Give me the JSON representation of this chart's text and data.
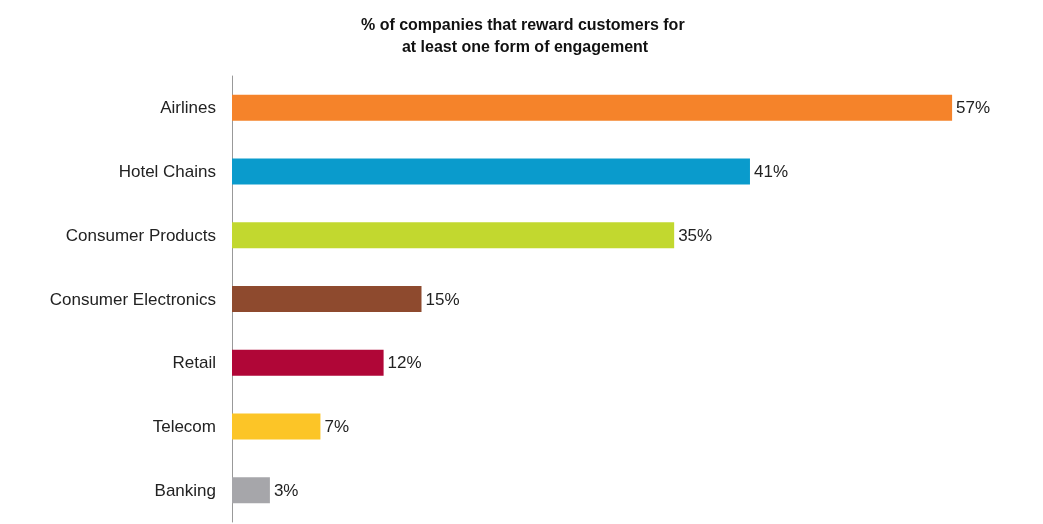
{
  "chart_data": {
    "type": "bar",
    "orientation": "horizontal",
    "title": "% of companies that reward customers for at least one form of engagement",
    "categories": [
      "Airlines",
      "Hotel Chains",
      "Consumer Products",
      "Consumer Electronics",
      "Retail",
      "Telecom",
      "Banking"
    ],
    "values": [
      57,
      41,
      35,
      15,
      12,
      7,
      3
    ],
    "value_labels": [
      "57%",
      "41%",
      "35%",
      "15%",
      "12%",
      "7%",
      "3%"
    ],
    "colors": [
      "#f5832a",
      "#0a9bcc",
      "#c2d82f",
      "#8e4a2e",
      "#b00637",
      "#fcc527",
      "#a6a6aa"
    ]
  }
}
